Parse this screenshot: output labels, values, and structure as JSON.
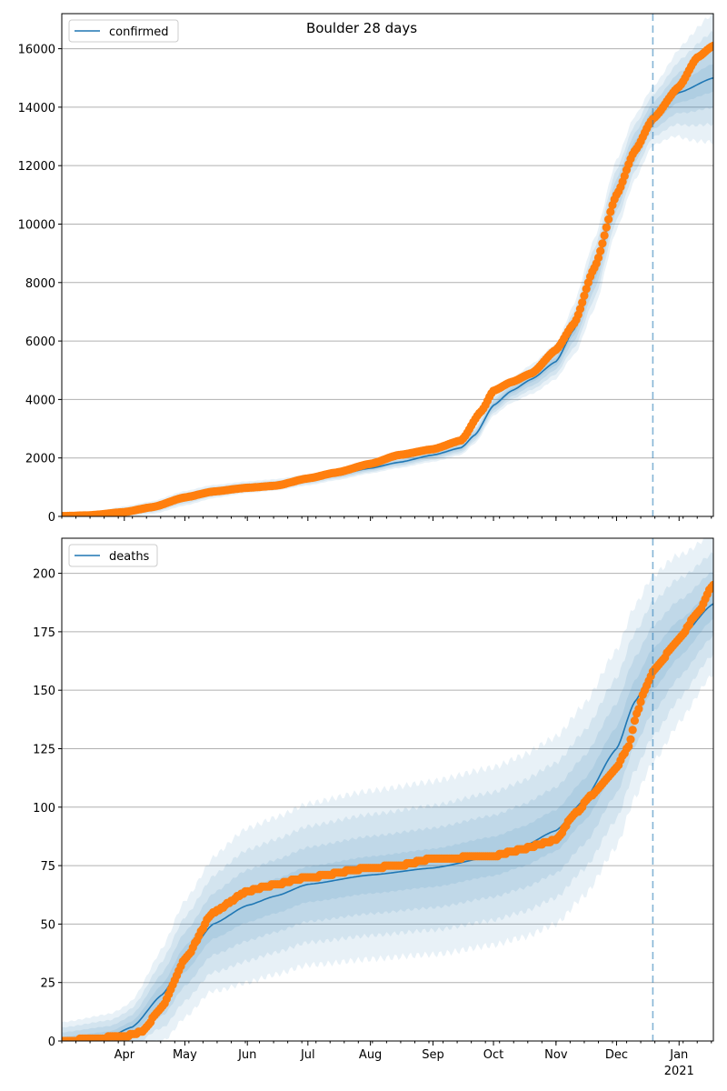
{
  "figure_title": "Boulder 28 days",
  "colors": {
    "model_line": "#1f77b4",
    "band": "#1f77b4",
    "observed": "#ff7f0e",
    "grid": "#b0b0b0",
    "split_line": "#1f77b4"
  },
  "x_axis": {
    "start": "2020-03-01",
    "end": "2021-01-18",
    "forecast_start": "2020-12-19",
    "month_ticks": [
      {
        "label": "Apr",
        "date": "2020-04-01"
      },
      {
        "label": "May",
        "date": "2020-05-01"
      },
      {
        "label": "Jun",
        "date": "2020-06-01"
      },
      {
        "label": "Jul",
        "date": "2020-07-01"
      },
      {
        "label": "Aug",
        "date": "2020-08-01"
      },
      {
        "label": "Sep",
        "date": "2020-09-01"
      },
      {
        "label": "Oct",
        "date": "2020-10-01"
      },
      {
        "label": "Nov",
        "date": "2020-11-01"
      },
      {
        "label": "Dec",
        "date": "2020-12-01"
      },
      {
        "label": "Jan",
        "date": "2021-01-01"
      }
    ],
    "year_label": "2021"
  },
  "chart_data": [
    {
      "type": "line",
      "legend_label": "confirmed",
      "legend_position": "top-left",
      "grid": true,
      "ylim": [
        0,
        17200
      ],
      "y_ticks": [
        0,
        2000,
        4000,
        6000,
        8000,
        10000,
        12000,
        14000,
        16000
      ],
      "model_key_points": [
        [
          "2020-03-01",
          0
        ],
        [
          "2020-03-20",
          60
        ],
        [
          "2020-04-01",
          150
        ],
        [
          "2020-04-15",
          300
        ],
        [
          "2020-05-01",
          620
        ],
        [
          "2020-05-15",
          850
        ],
        [
          "2020-06-01",
          1000
        ],
        [
          "2020-06-15",
          1080
        ],
        [
          "2020-07-01",
          1250
        ],
        [
          "2020-07-15",
          1420
        ],
        [
          "2020-08-01",
          1650
        ],
        [
          "2020-08-15",
          1850
        ],
        [
          "2020-09-01",
          2100
        ],
        [
          "2020-09-15",
          2350
        ],
        [
          "2020-09-22",
          2800
        ],
        [
          "2020-10-01",
          3800
        ],
        [
          "2020-10-10",
          4300
        ],
        [
          "2020-10-20",
          4700
        ],
        [
          "2020-11-01",
          5300
        ],
        [
          "2020-11-10",
          6400
        ],
        [
          "2020-11-20",
          8300
        ],
        [
          "2020-12-01",
          11000
        ],
        [
          "2020-12-10",
          12600
        ],
        [
          "2020-12-19",
          13700
        ],
        [
          "2021-01-01",
          14500
        ],
        [
          "2021-01-18",
          15000
        ]
      ],
      "band_key_points": [
        [
          "2020-03-01",
          0
        ],
        [
          "2020-04-01",
          200
        ],
        [
          "2020-05-01",
          250
        ],
        [
          "2020-06-01",
          200
        ],
        [
          "2020-08-01",
          180
        ],
        [
          "2020-09-15",
          250
        ],
        [
          "2020-10-01",
          350
        ],
        [
          "2020-11-01",
          600
        ],
        [
          "2020-11-20",
          1200
        ],
        [
          "2020-12-01",
          1200
        ],
        [
          "2020-12-19",
          1000
        ],
        [
          "2021-01-18",
          2200
        ]
      ],
      "observed_key_points": [
        [
          "2020-03-01",
          10
        ],
        [
          "2020-03-15",
          40
        ],
        [
          "2020-04-01",
          150
        ],
        [
          "2020-04-15",
          320
        ],
        [
          "2020-05-01",
          650
        ],
        [
          "2020-05-15",
          850
        ],
        [
          "2020-06-01",
          980
        ],
        [
          "2020-06-15",
          1050
        ],
        [
          "2020-07-01",
          1300
        ],
        [
          "2020-07-15",
          1500
        ],
        [
          "2020-08-01",
          1800
        ],
        [
          "2020-08-15",
          2100
        ],
        [
          "2020-09-01",
          2300
        ],
        [
          "2020-09-15",
          2600
        ],
        [
          "2020-09-25",
          3600
        ],
        [
          "2020-10-01",
          4300
        ],
        [
          "2020-10-10",
          4600
        ],
        [
          "2020-10-20",
          4900
        ],
        [
          "2020-11-01",
          5700
        ],
        [
          "2020-11-10",
          6600
        ],
        [
          "2020-11-20",
          8500
        ],
        [
          "2020-12-01",
          11000
        ],
        [
          "2020-12-10",
          12500
        ],
        [
          "2020-12-19",
          13600
        ],
        [
          "2021-01-01",
          14700
        ],
        [
          "2021-01-10",
          15700
        ],
        [
          "2021-01-18",
          16100
        ]
      ]
    },
    {
      "type": "line",
      "legend_label": "deaths",
      "legend_position": "top-left",
      "grid": true,
      "ylim": [
        0,
        215
      ],
      "y_ticks": [
        0,
        25,
        50,
        75,
        100,
        125,
        150,
        175,
        200
      ],
      "model_key_points": [
        [
          "2020-03-01",
          0
        ],
        [
          "2020-03-25",
          2
        ],
        [
          "2020-04-05",
          6
        ],
        [
          "2020-04-20",
          20
        ],
        [
          "2020-05-01",
          35
        ],
        [
          "2020-05-15",
          50
        ],
        [
          "2020-06-01",
          58
        ],
        [
          "2020-06-15",
          62
        ],
        [
          "2020-07-01",
          67
        ],
        [
          "2020-08-01",
          71
        ],
        [
          "2020-09-01",
          74
        ],
        [
          "2020-10-01",
          79
        ],
        [
          "2020-10-15",
          83
        ],
        [
          "2020-11-01",
          90
        ],
        [
          "2020-11-15",
          103
        ],
        [
          "2020-12-01",
          125
        ],
        [
          "2020-12-10",
          145
        ],
        [
          "2020-12-19",
          159
        ],
        [
          "2021-01-01",
          172
        ],
        [
          "2021-01-18",
          187
        ]
      ],
      "band_key_points": [
        [
          "2020-03-01",
          8
        ],
        [
          "2020-04-01",
          10
        ],
        [
          "2020-05-01",
          25
        ],
        [
          "2020-06-01",
          33
        ],
        [
          "2020-08-01",
          36
        ],
        [
          "2020-10-01",
          38
        ],
        [
          "2020-11-01",
          40
        ],
        [
          "2020-12-01",
          42
        ],
        [
          "2020-12-19",
          40
        ],
        [
          "2021-01-18",
          30
        ]
      ],
      "observed_key_points": [
        [
          "2020-03-01",
          0
        ],
        [
          "2020-04-01",
          2
        ],
        [
          "2020-04-10",
          4
        ],
        [
          "2020-04-20",
          15
        ],
        [
          "2020-05-01",
          35
        ],
        [
          "2020-05-15",
          55
        ],
        [
          "2020-06-01",
          64
        ],
        [
          "2020-06-15",
          67
        ],
        [
          "2020-07-01",
          70
        ],
        [
          "2020-08-01",
          74
        ],
        [
          "2020-08-15",
          75
        ],
        [
          "2020-09-01",
          78
        ],
        [
          "2020-10-01",
          79
        ],
        [
          "2020-10-15",
          82
        ],
        [
          "2020-11-01",
          86
        ],
        [
          "2020-11-10",
          97
        ],
        [
          "2020-11-20",
          106
        ],
        [
          "2020-12-01",
          117
        ],
        [
          "2020-12-07",
          126
        ],
        [
          "2020-12-11",
          140
        ],
        [
          "2020-12-15",
          150
        ],
        [
          "2020-12-19",
          158
        ],
        [
          "2021-01-01",
          172
        ],
        [
          "2021-01-10",
          183
        ],
        [
          "2021-01-18",
          195
        ]
      ]
    }
  ]
}
